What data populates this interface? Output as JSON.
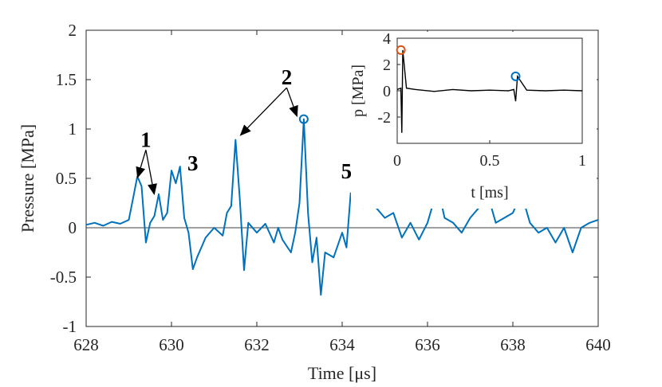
{
  "colors": {
    "series": "#0072BD",
    "inset_trace": "#000000",
    "first_peak_marker": "#D95319",
    "axes": "#262626",
    "zero_line": "#404040"
  },
  "chart_data": [
    {
      "type": "line",
      "title": "",
      "xlabel": "Time [μs]",
      "ylabel": "Pressure [MPa]",
      "xlim": [
        628,
        640
      ],
      "ylim": [
        -1,
        2
      ],
      "x_ticks": [
        628,
        630,
        632,
        634,
        636,
        638,
        640
      ],
      "y_ticks": [
        -1,
        -0.5,
        0,
        0.5,
        1,
        1.5,
        2
      ],
      "x_tick_labels": [
        "628",
        "630",
        "632",
        "634",
        "636",
        "638",
        "640"
      ],
      "y_tick_labels": [
        "-1",
        "-0.5",
        "0",
        "0.5",
        "1",
        "1.5",
        "2"
      ],
      "zero_line": true,
      "series": [
        {
          "name": "pressure",
          "x": [
            628.0,
            628.2,
            628.4,
            628.6,
            628.8,
            629.0,
            629.1,
            629.2,
            629.3,
            629.4,
            629.5,
            629.6,
            629.7,
            629.8,
            629.9,
            630.0,
            630.1,
            630.2,
            630.3,
            630.4,
            630.5,
            630.6,
            630.8,
            631.0,
            631.2,
            631.3,
            631.4,
            631.5,
            631.6,
            631.7,
            631.8,
            632.0,
            632.2,
            632.4,
            632.5,
            632.6,
            632.8,
            632.9,
            633.0,
            633.1,
            633.2,
            633.3,
            633.4,
            633.5,
            633.6,
            633.8,
            634.0,
            634.1,
            634.2,
            634.3,
            634.4,
            634.5,
            634.6,
            634.8,
            635.0,
            635.2,
            635.4,
            635.6,
            635.8,
            636.0,
            636.1,
            636.2,
            636.3,
            636.4,
            636.6,
            636.8,
            637.0,
            637.2,
            637.4,
            637.5,
            637.6,
            637.8,
            638.0,
            638.2,
            638.4,
            638.6,
            638.8,
            639.0,
            639.2,
            639.4,
            639.6,
            639.8,
            640.0
          ],
          "y": [
            0.03,
            0.05,
            0.02,
            0.06,
            0.04,
            0.08,
            0.3,
            0.52,
            0.42,
            -0.15,
            0.05,
            0.12,
            0.34,
            0.08,
            0.15,
            0.58,
            0.45,
            0.62,
            0.1,
            -0.05,
            -0.42,
            -0.3,
            -0.1,
            0.0,
            -0.08,
            0.15,
            0.22,
            0.89,
            0.3,
            -0.43,
            0.05,
            -0.05,
            0.04,
            -0.15,
            0.0,
            -0.12,
            -0.25,
            -0.05,
            0.25,
            1.1,
            0.15,
            -0.35,
            -0.1,
            -0.68,
            -0.25,
            -0.3,
            -0.05,
            -0.2,
            0.35,
            0.25,
            0.48,
            0.2,
            0.3,
            0.2,
            0.1,
            0.15,
            -0.1,
            0.05,
            -0.12,
            0.05,
            0.2,
            0.59,
            0.3,
            0.1,
            0.05,
            -0.05,
            0.1,
            0.2,
            0.3,
            0.2,
            0.05,
            0.1,
            0.15,
            0.35,
            0.05,
            -0.05,
            0.0,
            -0.15,
            0.0,
            -0.25,
            0.0,
            0.05,
            0.08
          ]
        }
      ],
      "marker": {
        "x": 633.1,
        "y": 1.1,
        "shape": "circle"
      },
      "annotations": [
        {
          "label": "1",
          "x": 629.4,
          "y": 0.82,
          "arrow_targets": [
            [
              629.2,
              0.5
            ],
            [
              629.6,
              0.33
            ]
          ]
        },
        {
          "label": "2",
          "x": 632.7,
          "y": 1.45,
          "arrow_targets": [
            [
              631.6,
              0.93
            ],
            [
              632.95,
              1.12
            ]
          ]
        },
        {
          "label": "3",
          "x": 630.5,
          "y": 0.58,
          "arrow_targets": []
        },
        {
          "label": "5",
          "x": 634.1,
          "y": 0.5,
          "arrow_targets": []
        }
      ]
    },
    {
      "type": "line",
      "title": "",
      "xlabel": "t [ms]",
      "ylabel": "p [MPa]",
      "xlim": [
        0,
        1
      ],
      "ylim": [
        -4,
        4
      ],
      "x_ticks": [
        0,
        0.5,
        1
      ],
      "y_ticks": [
        -2,
        0,
        2,
        4
      ],
      "x_tick_labels": [
        "0",
        "0.5",
        "1"
      ],
      "y_tick_labels": [
        "-2",
        "0",
        "2",
        "4"
      ],
      "series": [
        {
          "name": "full record",
          "x": [
            0.0,
            0.02,
            0.025,
            0.03,
            0.05,
            0.1,
            0.2,
            0.3,
            0.4,
            0.5,
            0.6,
            0.63,
            0.64,
            0.65,
            0.7,
            0.8,
            0.9,
            1.0
          ],
          "y": [
            0.1,
            0.2,
            -3.2,
            3.1,
            0.2,
            0.1,
            -0.05,
            0.1,
            0.0,
            0.05,
            0.0,
            0.1,
            -0.8,
            1.1,
            0.05,
            0.0,
            0.05,
            0.0
          ]
        }
      ],
      "markers": [
        {
          "x": 0.02,
          "y": 3.1,
          "color_key": "first_peak_marker"
        },
        {
          "x": 0.64,
          "y": 1.1,
          "color_key": "series"
        }
      ]
    }
  ]
}
